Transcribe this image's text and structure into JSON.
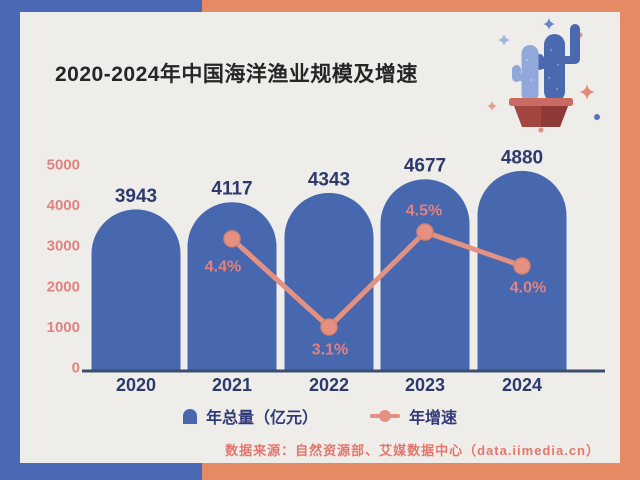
{
  "frame": {
    "left_color": "#4a69b4",
    "right_color": "#e58a64",
    "card_color": "#eeedea"
  },
  "chart_data": {
    "type": "bar",
    "title": "2020-2024年中国海洋渔业规模及增速",
    "categories": [
      "2020",
      "2021",
      "2022",
      "2023",
      "2024"
    ],
    "series": [
      {
        "name": "年总量（亿元）",
        "type": "bar",
        "values": [
          3943,
          4117,
          4343,
          4677,
          4880
        ],
        "labels": [
          "3943",
          "4117",
          "4343",
          "4677",
          "4880"
        ],
        "color": "#4767ae"
      },
      {
        "name": "年增速",
        "type": "line",
        "unit": "%",
        "values": [
          null,
          4.4,
          3.1,
          4.5,
          4.0
        ],
        "labels": [
          "",
          "4.4%",
          "3.1%",
          "4.5%",
          "4.0%"
        ],
        "color": "#e39181"
      }
    ],
    "y_axis": {
      "ticks": [
        0,
        1000,
        2000,
        3000,
        4000,
        5000
      ],
      "tick_color": "#e2827e"
    },
    "ylim": [
      0,
      5000
    ],
    "grid": false,
    "legend_position": "bottom",
    "value_label_color": "#2e3a6e",
    "category_label_color": "#2e3a6e",
    "growth_label_color": "#e2827e",
    "axis_line_color": "#3c4e6e"
  },
  "legend": {
    "bar_label": "年总量（亿元）",
    "line_label": "年增速"
  },
  "source": {
    "text": "数据来源：自然资源部、艾媒数据中心（data.iimedia.cn）"
  }
}
